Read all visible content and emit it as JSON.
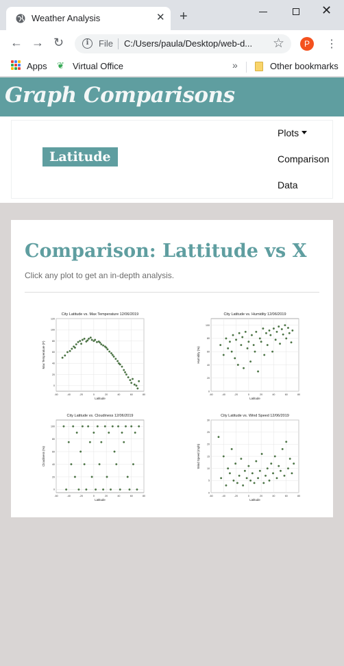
{
  "browser": {
    "tab_title": "Weather Analysis",
    "tab_close": "✕",
    "new_tab": "+",
    "omnibox_scheme": "File",
    "url": "C:/Users/paula/Desktop/web-d...",
    "profile_initial": "P",
    "bookmarks": {
      "apps": "Apps",
      "virtual_office": "Virtual Office",
      "overflow": "»",
      "other": "Other bookmarks"
    }
  },
  "header": {
    "title": "Graph Comparisons"
  },
  "navbar": {
    "brand": "Latitude",
    "items": [
      {
        "label": "Plots"
      },
      {
        "label": "Comparison"
      },
      {
        "label": "Data"
      }
    ]
  },
  "content": {
    "heading": "Comparison: Lattitude vs X",
    "subtitle": "Click any plot to get an in-depth analysis."
  },
  "colors": {
    "accent": "#5f9ea0",
    "point": "#4d7a45",
    "background": "#d9d5d4"
  },
  "chart_data": [
    {
      "type": "scatter",
      "title": "City Latitude vs. Max Temperature 12/06/2019",
      "xlabel": "Latitude",
      "ylabel": "Max Temperature (F)",
      "xlim": [
        -60,
        80
      ],
      "ylim": [
        -10,
        120
      ],
      "xticks": [
        -60,
        -40,
        -20,
        0,
        20,
        40,
        60,
        80
      ],
      "yticks": [
        -20,
        0,
        20,
        40,
        60,
        80,
        100,
        120
      ],
      "grid": true,
      "x": [
        -50,
        -46,
        -42,
        -38,
        -35,
        -32,
        -30,
        -28,
        -25,
        -22,
        -20,
        -18,
        -15,
        -12,
        -10,
        -8,
        -5,
        -3,
        0,
        2,
        5,
        8,
        10,
        12,
        15,
        18,
        20,
        22,
        25,
        28,
        30,
        32,
        35,
        38,
        40,
        42,
        45,
        48,
        50,
        52,
        55,
        58,
        60,
        62,
        65,
        68,
        70,
        72
      ],
      "y": [
        50,
        54,
        60,
        62,
        66,
        70,
        68,
        74,
        78,
        80,
        75,
        82,
        84,
        79,
        81,
        84,
        86,
        82,
        80,
        82,
        78,
        79,
        77,
        74,
        72,
        70,
        68,
        65,
        61,
        58,
        55,
        52,
        48,
        44,
        40,
        38,
        34,
        28,
        24,
        20,
        15,
        10,
        5,
        12,
        2,
        0,
        -5,
        8
      ]
    },
    {
      "type": "scatter",
      "title": "City Latitude vs. Humidity 12/06/2019",
      "xlabel": "Latitude",
      "ylabel": "Humidity (%)",
      "xlim": [
        -60,
        80
      ],
      "ylim": [
        0,
        110
      ],
      "xticks": [
        -60,
        -40,
        -20,
        0,
        20,
        40,
        60,
        80
      ],
      "yticks": [
        0,
        20,
        40,
        60,
        80,
        100
      ],
      "grid": true,
      "x": [
        -45,
        -40,
        -36,
        -33,
        -30,
        -27,
        -25,
        -22,
        -20,
        -17,
        -15,
        -12,
        -10,
        -8,
        -5,
        -2,
        0,
        3,
        5,
        8,
        10,
        12,
        15,
        18,
        20,
        23,
        25,
        28,
        30,
        33,
        35,
        38,
        40,
        43,
        45,
        48,
        50,
        53,
        55,
        58,
        60,
        63,
        65,
        68,
        70
      ],
      "y": [
        70,
        55,
        80,
        65,
        75,
        60,
        85,
        50,
        78,
        40,
        88,
        70,
        82,
        35,
        90,
        65,
        75,
        45,
        85,
        70,
        60,
        90,
        30,
        80,
        75,
        95,
        55,
        88,
        70,
        92,
        85,
        60,
        95,
        78,
        90,
        98,
        72,
        94,
        86,
        100,
        80,
        96,
        88,
        74,
        92
      ]
    },
    {
      "type": "scatter",
      "title": "City Latitude vs. Cloudiness 12/06/2019",
      "xlabel": "Latitude",
      "ylabel": "Cloudiness (%)",
      "xlim": [
        -60,
        80
      ],
      "ylim": [
        -5,
        110
      ],
      "xticks": [
        -60,
        -40,
        -20,
        0,
        20,
        40,
        60,
        80
      ],
      "yticks": [
        0,
        20,
        40,
        60,
        80,
        100
      ],
      "grid": true,
      "x": [
        -48,
        -44,
        -40,
        -36,
        -33,
        -30,
        -27,
        -24,
        -21,
        -18,
        -15,
        -12,
        -9,
        -6,
        -3,
        0,
        3,
        6,
        9,
        12,
        15,
        18,
        21,
        24,
        27,
        30,
        33,
        36,
        39,
        42,
        45,
        48,
        51,
        54,
        57,
        60,
        63,
        66,
        69,
        72
      ],
      "y": [
        100,
        0,
        75,
        40,
        100,
        20,
        90,
        0,
        60,
        100,
        40,
        0,
        100,
        75,
        20,
        90,
        0,
        100,
        40,
        75,
        0,
        100,
        20,
        90,
        0,
        100,
        60,
        40,
        100,
        0,
        90,
        75,
        100,
        20,
        0,
        100,
        40,
        90,
        0,
        100
      ]
    },
    {
      "type": "scatter",
      "title": "City Latitude vs. Wind Speed 12/06/2019",
      "xlabel": "Latitude",
      "ylabel": "Wind Speed (mph)",
      "xlim": [
        -60,
        80
      ],
      "ylim": [
        0,
        30
      ],
      "xticks": [
        -60,
        -40,
        -20,
        0,
        20,
        40,
        60,
        80
      ],
      "yticks": [
        0,
        5,
        10,
        15,
        20,
        25,
        30
      ],
      "grid": true,
      "x": [
        -48,
        -44,
        -40,
        -36,
        -33,
        -30,
        -27,
        -24,
        -21,
        -18,
        -15,
        -12,
        -9,
        -6,
        -3,
        0,
        3,
        6,
        9,
        12,
        15,
        18,
        21,
        24,
        27,
        30,
        33,
        36,
        39,
        42,
        45,
        48,
        51,
        54,
        57,
        60,
        63,
        66,
        69,
        72
      ],
      "y": [
        23,
        6,
        15,
        3,
        10,
        8,
        18,
        5,
        12,
        4,
        7,
        14,
        3,
        9,
        6,
        11,
        5,
        8,
        4,
        13,
        6,
        9,
        16,
        4,
        7,
        10,
        5,
        12,
        8,
        15,
        6,
        11,
        9,
        18,
        7,
        21,
        10,
        14,
        8,
        12
      ]
    }
  ]
}
